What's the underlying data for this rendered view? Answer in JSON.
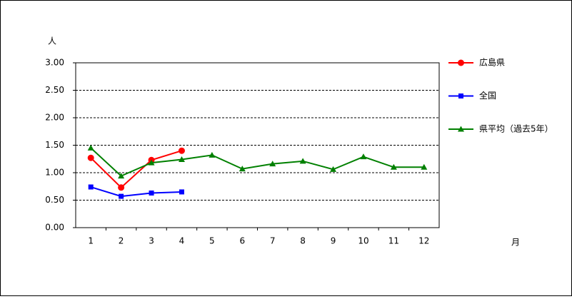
{
  "chart_data": {
    "type": "line",
    "y_label": "人",
    "x_label": "月",
    "categories": [
      "1",
      "2",
      "3",
      "4",
      "5",
      "6",
      "7",
      "8",
      "9",
      "10",
      "11",
      "12"
    ],
    "series": [
      {
        "name": "広島県",
        "color": "#ff0000",
        "marker": "circle",
        "values": [
          1.27,
          0.73,
          1.23,
          1.4,
          null,
          null,
          null,
          null,
          null,
          null,
          null,
          null
        ]
      },
      {
        "name": "全国",
        "color": "#0000ff",
        "marker": "square",
        "values": [
          0.74,
          0.57,
          0.63,
          0.65,
          null,
          null,
          null,
          null,
          null,
          null,
          null,
          null
        ]
      },
      {
        "name": "県平均（過去5年）",
        "color": "#008000",
        "marker": "triangle",
        "values": [
          1.45,
          0.94,
          1.18,
          1.24,
          1.32,
          1.07,
          1.16,
          1.21,
          1.06,
          1.29,
          1.1,
          1.1
        ]
      }
    ],
    "ylim": [
      0,
      3
    ],
    "yticks": [
      {
        "value": 0,
        "label": "0.00"
      },
      {
        "value": 0.5,
        "label": "0.50"
      },
      {
        "value": 1,
        "label": "1.00"
      },
      {
        "value": 1.5,
        "label": "1.50"
      },
      {
        "value": 2,
        "label": "2.00"
      },
      {
        "value": 2.5,
        "label": "2.50"
      },
      {
        "value": 3,
        "label": "3.00"
      }
    ],
    "grid": true,
    "legend": "right"
  }
}
